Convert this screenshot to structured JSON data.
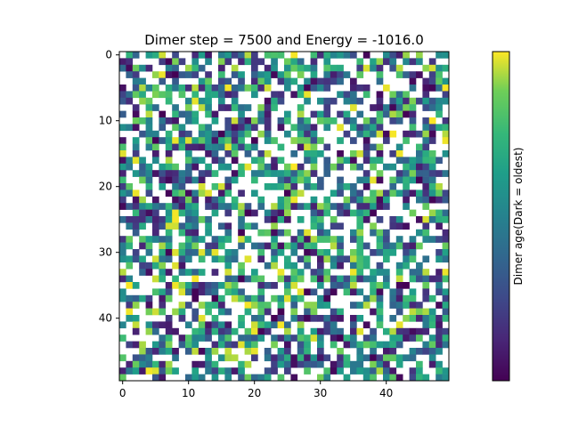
{
  "chart_data": {
    "type": "heatmap",
    "title": "Dimer step = 7500 and Energy = -1016.0",
    "colorbar_label": "Dimer age(Dark = oldest)",
    "grid_size": [
      50,
      50
    ],
    "xlim": [
      -0.5,
      49.5
    ],
    "ylim": [
      49.5,
      -0.5
    ],
    "xticks": [
      0,
      10,
      20,
      30,
      40
    ],
    "yticks": [
      0,
      10,
      20,
      30,
      40
    ],
    "colormap": "viridis",
    "empty_color": "#ffffff",
    "cell_fill_fraction": 0.62,
    "value_range": [
      0,
      1
    ],
    "cells_note_seed": 7500
  }
}
